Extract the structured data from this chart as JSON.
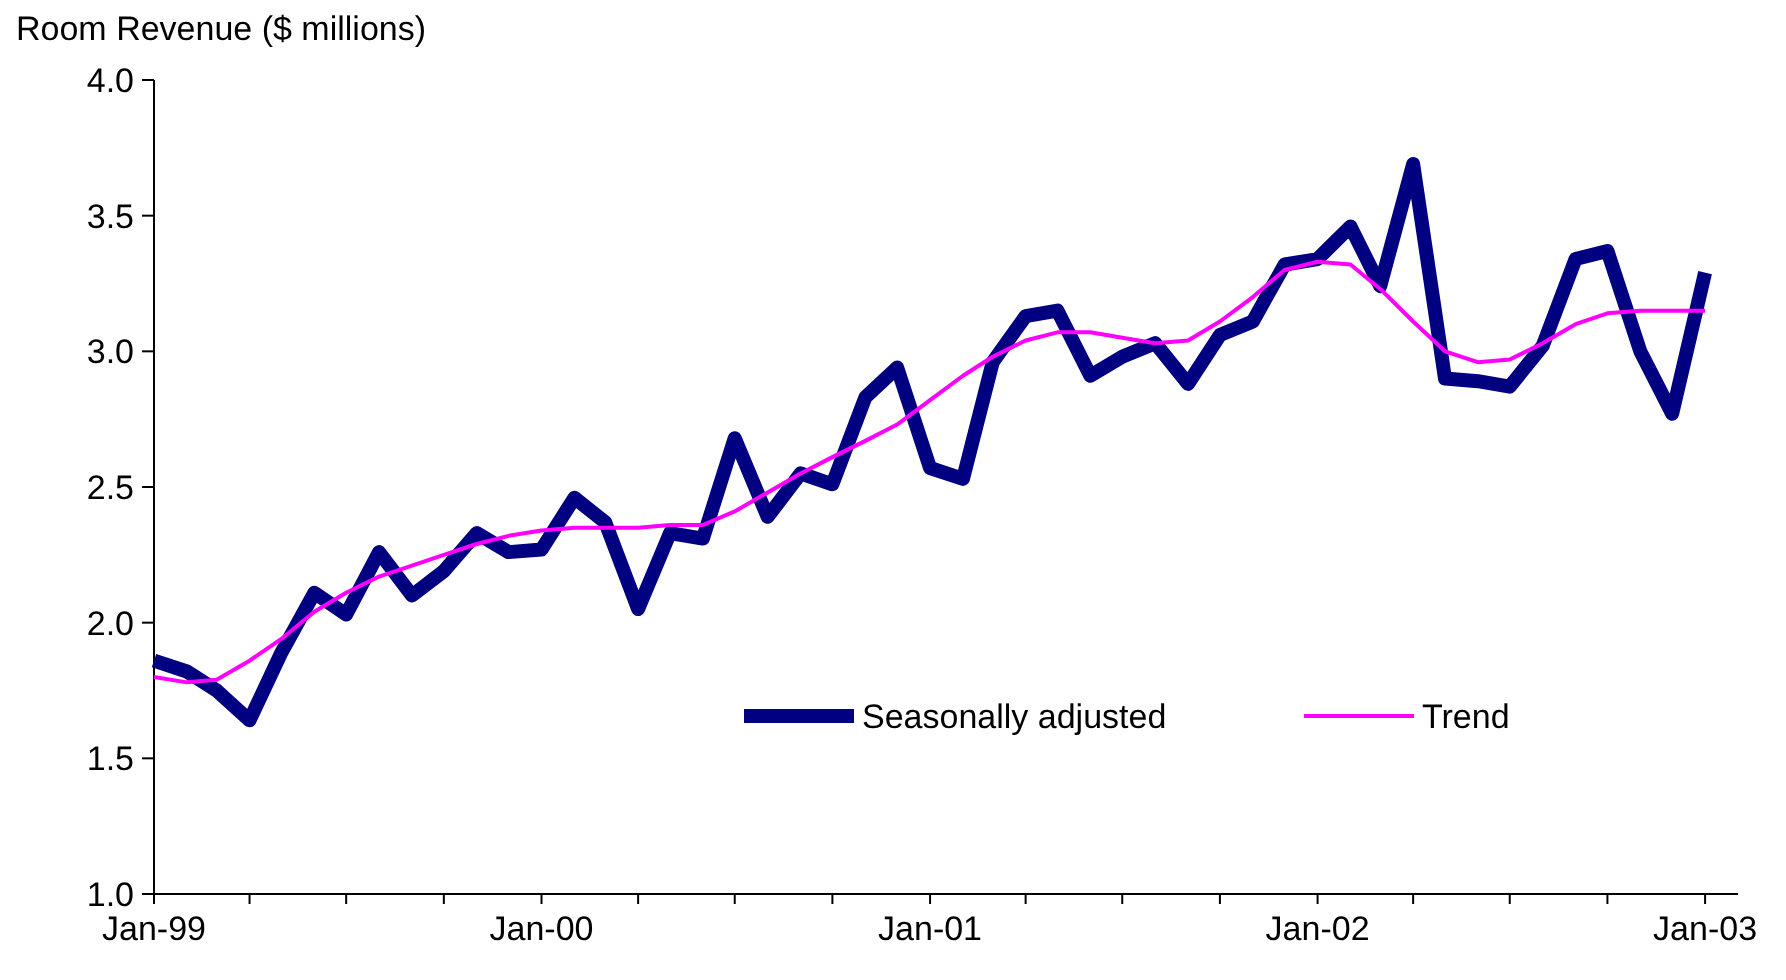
{
  "chart_data": {
    "type": "line",
    "ylabel": "Room Revenue ($ millions)",
    "x": [
      "1999-01",
      "1999-02",
      "1999-03",
      "1999-04",
      "1999-05",
      "1999-06",
      "1999-07",
      "1999-08",
      "1999-09",
      "1999-10",
      "1999-11",
      "1999-12",
      "2000-01",
      "2000-02",
      "2000-03",
      "2000-04",
      "2000-05",
      "2000-06",
      "2000-07",
      "2000-08",
      "2000-09",
      "2000-10",
      "2000-11",
      "2000-12",
      "2001-01",
      "2001-02",
      "2001-03",
      "2001-04",
      "2001-05",
      "2001-06",
      "2001-07",
      "2001-08",
      "2001-09",
      "2001-10",
      "2001-11",
      "2001-12",
      "2002-01",
      "2002-02",
      "2002-03",
      "2002-04",
      "2002-05",
      "2002-06",
      "2002-07",
      "2002-08",
      "2002-09",
      "2002-10",
      "2002-11",
      "2002-12",
      "2003-01"
    ],
    "series": [
      {
        "name": "Seasonally adjusted",
        "color": "#000080",
        "values": [
          1.86,
          1.82,
          1.75,
          1.64,
          1.89,
          2.11,
          2.03,
          2.26,
          2.1,
          2.19,
          2.33,
          2.26,
          2.27,
          2.46,
          2.37,
          2.05,
          2.33,
          2.31,
          2.68,
          2.39,
          2.55,
          2.51,
          2.83,
          2.94,
          2.57,
          2.53,
          2.96,
          3.13,
          3.15,
          2.91,
          2.98,
          3.03,
          2.88,
          3.06,
          3.11,
          3.32,
          3.34,
          3.46,
          3.24,
          3.69,
          2.9,
          2.89,
          2.87,
          3.02,
          3.34,
          3.37,
          3.0,
          2.77,
          3.29
        ]
      },
      {
        "name": "Trend",
        "color": "#ff00ff",
        "values": [
          1.8,
          1.78,
          1.79,
          1.86,
          1.94,
          2.04,
          2.11,
          2.17,
          2.21,
          2.25,
          2.29,
          2.32,
          2.34,
          2.35,
          2.35,
          2.35,
          2.36,
          2.36,
          2.41,
          2.48,
          2.55,
          2.61,
          2.67,
          2.73,
          2.82,
          2.91,
          2.98,
          3.04,
          3.07,
          3.07,
          3.05,
          3.03,
          3.04,
          3.11,
          3.2,
          3.3,
          3.33,
          3.32,
          3.23,
          3.11,
          3.0,
          2.96,
          2.97,
          3.03,
          3.1,
          3.14,
          3.15,
          3.15,
          3.15
        ]
      }
    ],
    "xlim": [
      "1999-01",
      "2003-02"
    ],
    "xticks": [
      {
        "value": "1999-01",
        "label": "Jan-99"
      },
      {
        "value": "1999-04",
        "label": null
      },
      {
        "value": "1999-07",
        "label": null
      },
      {
        "value": "1999-10",
        "label": null
      },
      {
        "value": "2000-01",
        "label": "Jan-00"
      },
      {
        "value": "2000-04",
        "label": null
      },
      {
        "value": "2000-07",
        "label": null
      },
      {
        "value": "2000-10",
        "label": null
      },
      {
        "value": "2001-01",
        "label": "Jan-01"
      },
      {
        "value": "2001-04",
        "label": null
      },
      {
        "value": "2001-07",
        "label": null
      },
      {
        "value": "2001-10",
        "label": null
      },
      {
        "value": "2002-01",
        "label": "Jan-02"
      },
      {
        "value": "2002-04",
        "label": null
      },
      {
        "value": "2002-07",
        "label": null
      },
      {
        "value": "2002-10",
        "label": null
      },
      {
        "value": "2003-01",
        "label": "Jan-03"
      }
    ],
    "ylim": [
      1,
      4
    ],
    "yticks": [
      {
        "value": 1,
        "label": "1.0"
      },
      {
        "value": 1.5,
        "label": "1.5"
      },
      {
        "value": 2,
        "label": "2.0"
      },
      {
        "value": 2.5,
        "label": "2.5"
      },
      {
        "value": 3,
        "label": "3.0"
      },
      {
        "value": 3.5,
        "label": "3.5"
      },
      {
        "value": 4,
        "label": "4.0"
      }
    ],
    "legend": "bottom right"
  }
}
